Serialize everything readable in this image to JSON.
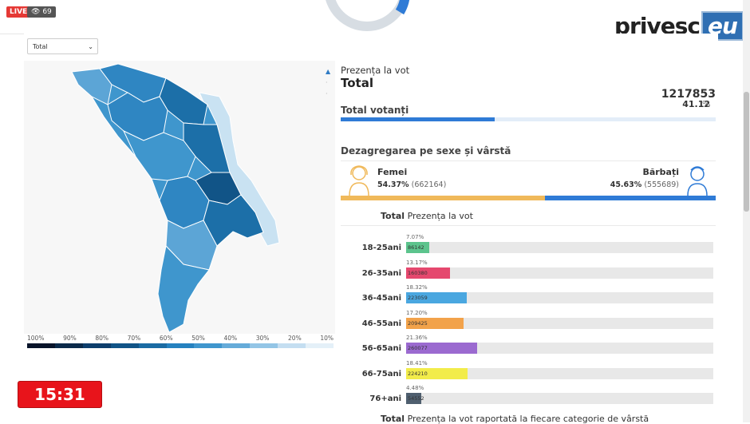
{
  "stream": {
    "live_label": "LIVE",
    "viewer_count": "69"
  },
  "brand": {
    "name": "privesc",
    "suffix": "eu"
  },
  "filter": {
    "selected": "Total"
  },
  "map": {
    "legend_labels": [
      "100%",
      "90%",
      "80%",
      "70%",
      "60%",
      "50%",
      "40%",
      "30%",
      "20%",
      "10%"
    ],
    "legend_colors": [
      "#08142a",
      "#0b2a4a",
      "#0d3e6c",
      "#115487",
      "#1a6ba3",
      "#2581bf",
      "#3f96cd",
      "#65abd9",
      "#93c5e6",
      "#c4def1",
      "#e4f0f8"
    ],
    "fill_colors": {
      "dark": "#1c6fa8",
      "mid": "#2f86c2",
      "light": "#5ca5d6",
      "pale": "#c9e2f2"
    }
  },
  "turnout": {
    "label": "Prezența la vot",
    "title": "Total",
    "total_count": "1217853",
    "total_percent": "41.12",
    "percent_symbol": "%",
    "voters_label": "Total votanți",
    "voters_progress": 0.4112,
    "accent": "#2f7bd6"
  },
  "gender": {
    "section_title": "Dezagregarea pe sexe și vârstă",
    "female": {
      "label": "Femei",
      "percent": "54.37%",
      "count": "(662164)",
      "share": 0.5437,
      "color": "#f0b95a"
    },
    "male": {
      "label": "Bărbați",
      "percent": "45.63%",
      "count": "(555689)",
      "share": 0.4563,
      "color": "#2f7bd6"
    }
  },
  "age": {
    "header_total": "Total",
    "header_label": "Prezența la vot",
    "rows": [
      {
        "label": "18-25ani",
        "pct": "7.07%",
        "value": "86142",
        "share": 0.0707,
        "color": "#5cc48d"
      },
      {
        "label": "26-35ani",
        "pct": "13.17%",
        "value": "160380",
        "share": 0.1317,
        "color": "#e5486e"
      },
      {
        "label": "36-45ani",
        "pct": "18.32%",
        "value": "223059",
        "share": 0.1832,
        "color": "#4aa7e0"
      },
      {
        "label": "46-55ani",
        "pct": "17.20%",
        "value": "209425",
        "share": 0.172,
        "color": "#f2a24a"
      },
      {
        "label": "56-65ani",
        "pct": "21.36%",
        "value": "260077",
        "share": 0.2136,
        "color": "#9b6ad0"
      },
      {
        "label": "66-75ani",
        "pct": "18.41%",
        "value": "224210",
        "share": 0.1841,
        "color": "#f2ec4a"
      },
      {
        "label": "76+ani",
        "pct": "4.48%",
        "value": "54552",
        "share": 0.0448,
        "color": "#4f5f6f"
      }
    ],
    "footer_total": "Total",
    "footer_label": "Prezența la vot raportată la fiecare categorie de vârstă"
  },
  "timer": {
    "value": "15:31"
  }
}
